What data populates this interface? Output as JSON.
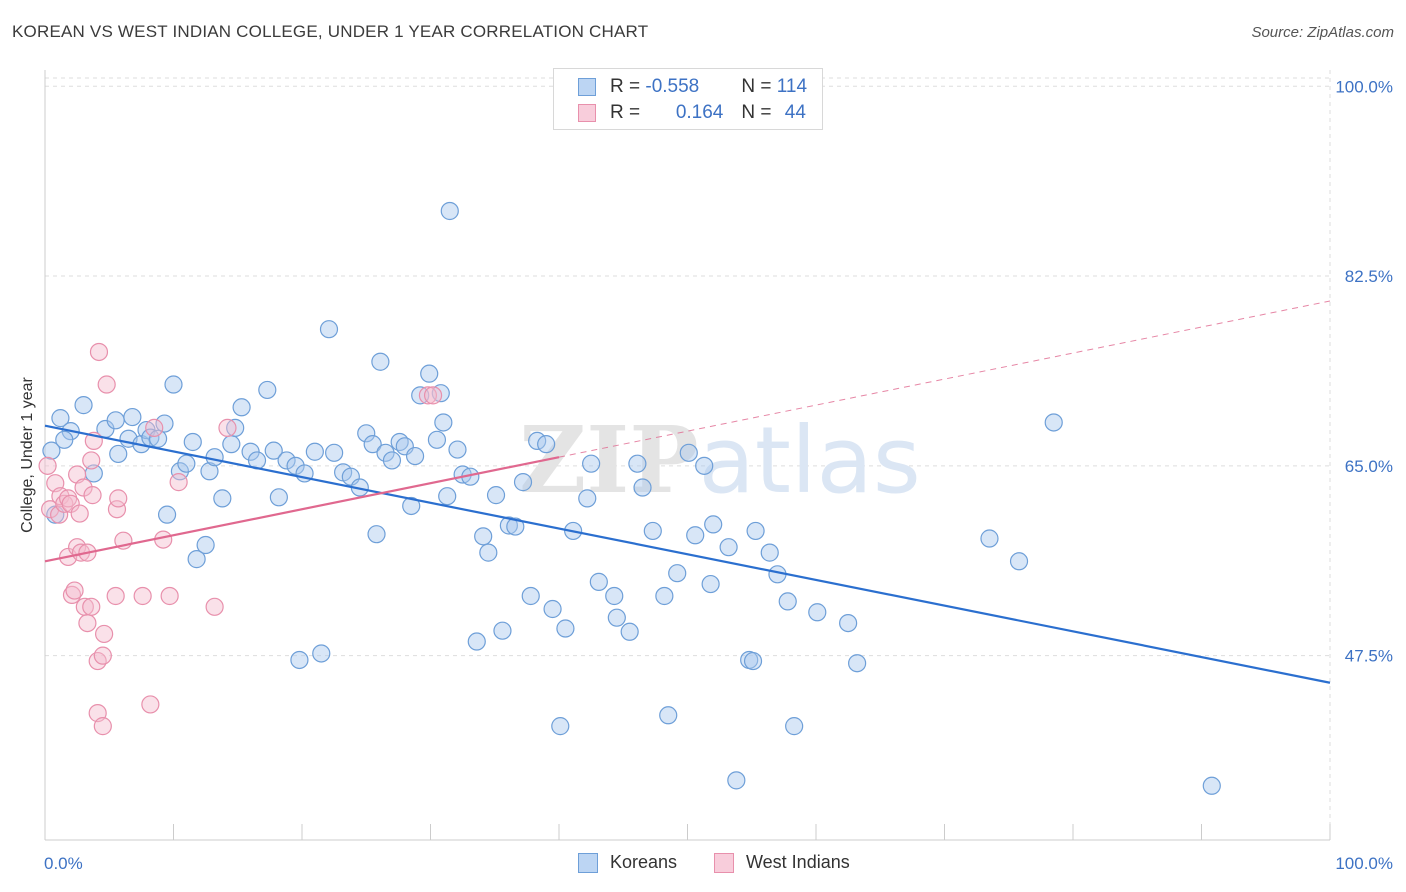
{
  "title": "KOREAN VS WEST INDIAN COLLEGE, UNDER 1 YEAR CORRELATION CHART",
  "source": "Source: ZipAtlas.com",
  "watermark": "ZIPatlas",
  "stats": {
    "koreans": {
      "r_label": "R = ",
      "r": "-0.558",
      "n_label": "N = ",
      "n": "114"
    },
    "west_indians": {
      "r_label": "R = ",
      "r": "0.164",
      "n_label": "N = ",
      "n": "44"
    }
  },
  "colors": {
    "blue_fill": "#a9c8ee",
    "blue_stroke": "#6e9fd8",
    "blue_line": "#2b6fcf",
    "pink_fill": "#f5bccf",
    "pink_stroke": "#e890ac",
    "pink_line": "#e0688f",
    "tick_label": "#3d72c4",
    "grid": "#dddddd"
  },
  "chart_data": {
    "type": "scatter",
    "title": "KOREAN VS WEST INDIAN COLLEGE, UNDER 1 YEAR CORRELATION CHART",
    "xlabel": "",
    "ylabel": "College, Under 1 year",
    "xlim": [
      0,
      100
    ],
    "ylim": [
      30.5,
      101.5
    ],
    "x_tick_labels": [
      "0.0%",
      "100.0%"
    ],
    "y_ticks": [
      47.5,
      65.0,
      82.5,
      100.0
    ],
    "y_tick_labels": [
      "47.5%",
      "65.0%",
      "82.5%",
      "100.0%"
    ],
    "grid": true,
    "legend": [
      "Koreans",
      "West Indians"
    ],
    "series": [
      {
        "name": "Koreans",
        "trend": {
          "x": [
            0,
            100
          ],
          "y": [
            68.7,
            45.0
          ]
        },
        "points": [
          [
            0.5,
            66.4
          ],
          [
            1.2,
            69.4
          ],
          [
            2,
            68.2
          ],
          [
            3,
            70.6
          ],
          [
            3.8,
            64.3
          ],
          [
            4.7,
            68.4
          ],
          [
            5.7,
            66.1
          ],
          [
            5.5,
            69.2
          ],
          [
            6.5,
            67.5
          ],
          [
            6.8,
            69.5
          ],
          [
            7.5,
            67.0
          ],
          [
            7.9,
            68.3
          ],
          [
            8.2,
            67.6
          ],
          [
            8.8,
            67.5
          ],
          [
            9.3,
            68.9
          ],
          [
            9.5,
            60.5
          ],
          [
            10,
            72.5
          ],
          [
            10.5,
            64.5
          ],
          [
            11,
            65.2
          ],
          [
            11.5,
            67.2
          ],
          [
            11.8,
            56.4
          ],
          [
            12.5,
            57.7
          ],
          [
            12.8,
            64.5
          ],
          [
            13.2,
            65.8
          ],
          [
            13.8,
            62.0
          ],
          [
            14.5,
            67.0
          ],
          [
            14.8,
            68.5
          ],
          [
            15.3,
            70.4
          ],
          [
            16,
            66.3
          ],
          [
            16.5,
            65.5
          ],
          [
            17.3,
            72.0
          ],
          [
            17.8,
            66.4
          ],
          [
            18.2,
            62.1
          ],
          [
            18.8,
            65.5
          ],
          [
            19.5,
            65.0
          ],
          [
            19.8,
            47.1
          ],
          [
            20.2,
            64.3
          ],
          [
            21,
            66.3
          ],
          [
            21.5,
            47.7
          ],
          [
            22.1,
            77.6
          ],
          [
            22.5,
            66.2
          ],
          [
            23.2,
            64.4
          ],
          [
            23.8,
            64.0
          ],
          [
            24.5,
            63.0
          ],
          [
            25,
            68.0
          ],
          [
            25.5,
            67.0
          ],
          [
            25.8,
            58.7
          ],
          [
            26.1,
            74.6
          ],
          [
            26.5,
            66.2
          ],
          [
            27,
            65.5
          ],
          [
            27.6,
            67.2
          ],
          [
            28,
            66.8
          ],
          [
            28.5,
            61.3
          ],
          [
            28.8,
            65.9
          ],
          [
            29.2,
            71.5
          ],
          [
            29.9,
            73.5
          ],
          [
            30.5,
            67.4
          ],
          [
            30.8,
            71.7
          ],
          [
            31,
            69.0
          ],
          [
            31.3,
            62.2
          ],
          [
            31.5,
            88.5
          ],
          [
            32.1,
            66.5
          ],
          [
            32.5,
            64.2
          ],
          [
            33.1,
            64.0
          ],
          [
            33.6,
            48.8
          ],
          [
            34.1,
            58.5
          ],
          [
            34.5,
            57.0
          ],
          [
            35.1,
            62.3
          ],
          [
            35.6,
            49.8
          ],
          [
            36.1,
            59.5
          ],
          [
            36.6,
            59.4
          ],
          [
            37.2,
            63.5
          ],
          [
            37.8,
            53.0
          ],
          [
            38.3,
            67.3
          ],
          [
            39,
            67.0
          ],
          [
            39.5,
            51.8
          ],
          [
            40.1,
            41.0
          ],
          [
            40.5,
            50.0
          ],
          [
            41.1,
            59.0
          ],
          [
            42.2,
            62.0
          ],
          [
            42.5,
            65.2
          ],
          [
            43.1,
            54.3
          ],
          [
            44.3,
            53.0
          ],
          [
            44.5,
            51.0
          ],
          [
            45.5,
            49.7
          ],
          [
            46.1,
            65.2
          ],
          [
            46.5,
            63.0
          ],
          [
            47.3,
            59.0
          ],
          [
            48.2,
            53.0
          ],
          [
            48.5,
            42.0
          ],
          [
            49.2,
            55.1
          ],
          [
            50.1,
            66.2
          ],
          [
            50.6,
            58.6
          ],
          [
            51.3,
            65.0
          ],
          [
            51.8,
            54.1
          ],
          [
            52,
            59.6
          ],
          [
            53.2,
            57.5
          ],
          [
            53.8,
            36.0
          ],
          [
            54.8,
            47.1
          ],
          [
            55.1,
            47.0
          ],
          [
            55.3,
            59.0
          ],
          [
            56.4,
            57.0
          ],
          [
            57,
            55.0
          ],
          [
            57.8,
            52.5
          ],
          [
            58.3,
            41.0
          ],
          [
            60.1,
            51.5
          ],
          [
            62.5,
            50.5
          ],
          [
            63.2,
            46.8
          ],
          [
            73.5,
            58.3
          ],
          [
            75.8,
            56.2
          ],
          [
            78.5,
            69.0
          ],
          [
            90.8,
            35.5
          ],
          [
            0.8,
            60.5
          ],
          [
            1.5,
            67.4
          ]
        ]
      },
      {
        "name": "West Indians",
        "trend": {
          "x": [
            0,
            40
          ],
          "y": [
            56.2,
            65.8
          ]
        },
        "points": [
          [
            0.4,
            61.0
          ],
          [
            0.8,
            63.4
          ],
          [
            1.1,
            60.5
          ],
          [
            1.2,
            62.2
          ],
          [
            1.5,
            61.5
          ],
          [
            1.8,
            62.0
          ],
          [
            1.8,
            56.6
          ],
          [
            2,
            61.5
          ],
          [
            2.1,
            53.1
          ],
          [
            2.3,
            53.5
          ],
          [
            2.5,
            57.5
          ],
          [
            2.5,
            64.2
          ],
          [
            2.7,
            60.6
          ],
          [
            2.8,
            57.0
          ],
          [
            3,
            63.0
          ],
          [
            3.1,
            52.0
          ],
          [
            3.3,
            57.0
          ],
          [
            3.3,
            50.5
          ],
          [
            3.6,
            65.5
          ],
          [
            3.6,
            52.0
          ],
          [
            3.7,
            62.3
          ],
          [
            3.8,
            67.3
          ],
          [
            4.1,
            42.2
          ],
          [
            4.1,
            47.0
          ],
          [
            4.2,
            75.5
          ],
          [
            4.5,
            47.5
          ],
          [
            4.5,
            41.0
          ],
          [
            4.6,
            49.5
          ],
          [
            4.8,
            72.5
          ],
          [
            5.5,
            53.0
          ],
          [
            5.6,
            61.0
          ],
          [
            5.7,
            62.0
          ],
          [
            6.1,
            58.1
          ],
          [
            7.6,
            53.0
          ],
          [
            8.2,
            43.0
          ],
          [
            8.5,
            68.5
          ],
          [
            9.2,
            58.2
          ],
          [
            9.7,
            53.0
          ],
          [
            10.4,
            63.5
          ],
          [
            13.2,
            52.0
          ],
          [
            14.2,
            68.5
          ],
          [
            29.8,
            71.5
          ],
          [
            30.2,
            71.5
          ],
          [
            0.2,
            65.0
          ]
        ]
      }
    ]
  }
}
